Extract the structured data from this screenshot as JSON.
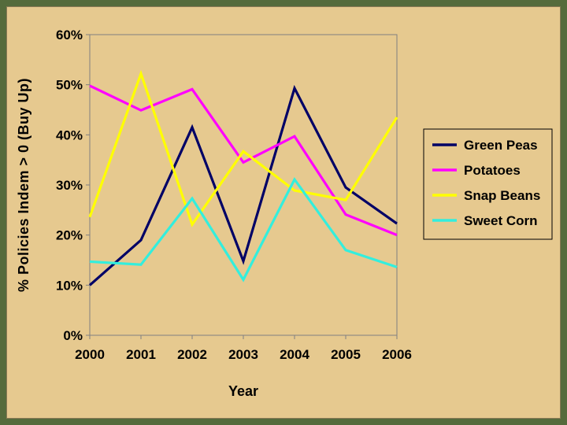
{
  "chart_data": {
    "type": "line",
    "title": "",
    "xlabel": "Year",
    "ylabel": "% Policies Indem > 0 (Buy Up)",
    "categories": [
      "2000",
      "2001",
      "2002",
      "2003",
      "2004",
      "2005",
      "2006"
    ],
    "ylim": [
      0,
      60
    ],
    "yticks": [
      0,
      10,
      20,
      30,
      40,
      50,
      60
    ],
    "ytick_labels": [
      "0%",
      "10%",
      "20%",
      "30%",
      "40%",
      "50%",
      "60%"
    ],
    "grid": false,
    "legend_position": "right",
    "series": [
      {
        "name": "Green Peas",
        "color": "#000066",
        "values": [
          10.0,
          19.0,
          41.5,
          14.8,
          49.3,
          29.5,
          22.3
        ]
      },
      {
        "name": "Potatoes",
        "color": "#ff00ff",
        "values": [
          49.8,
          44.9,
          49.1,
          34.5,
          39.7,
          24.1,
          20.0
        ]
      },
      {
        "name": "Snap Beans",
        "color": "#ffff00",
        "values": [
          23.6,
          52.2,
          22.1,
          36.7,
          28.9,
          27.0,
          43.5
        ]
      },
      {
        "name": "Sweet Corn",
        "color": "#33eedd",
        "values": [
          14.7,
          14.1,
          27.3,
          11.1,
          31.1,
          17.0,
          13.6
        ]
      }
    ]
  }
}
